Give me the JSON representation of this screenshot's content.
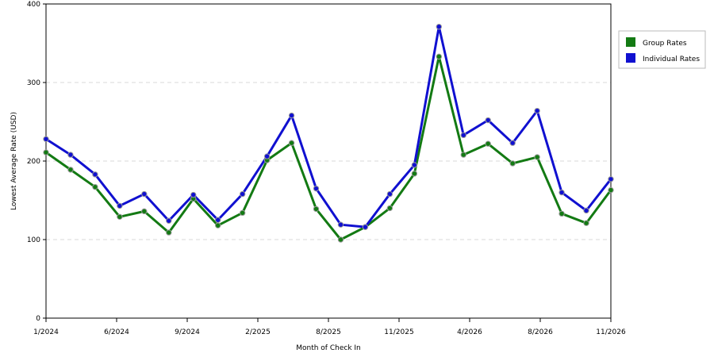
{
  "chart_data": {
    "type": "line",
    "xlabel": "Month of Check In",
    "ylabel": "Lowest Average Rate (USD)",
    "ylim": [
      0,
      400
    ],
    "yticks": [
      0,
      100,
      200,
      300,
      400
    ],
    "x_tick_labels": [
      "1/2024",
      "6/2024",
      "9/2024",
      "2/2025",
      "8/2025",
      "11/2025",
      "4/2026",
      "8/2026",
      "11/2026"
    ],
    "grid": true,
    "legend_position": "top-right",
    "series": [
      {
        "name": "Group Rates",
        "color": "#137a13",
        "values": [
          211,
          189,
          167,
          129,
          136,
          109,
          152,
          118,
          134,
          201,
          223,
          139,
          100,
          116,
          140,
          184,
          333,
          208,
          222,
          197,
          205,
          133,
          121,
          163
        ]
      },
      {
        "name": "Individual Rates",
        "color": "#1010d0",
        "values": [
          228,
          208,
          183,
          143,
          158,
          124,
          157,
          125,
          158,
          206,
          258,
          165,
          119,
          116,
          158,
          195,
          371,
          233,
          252,
          223,
          264,
          160,
          137,
          177
        ]
      }
    ]
  }
}
